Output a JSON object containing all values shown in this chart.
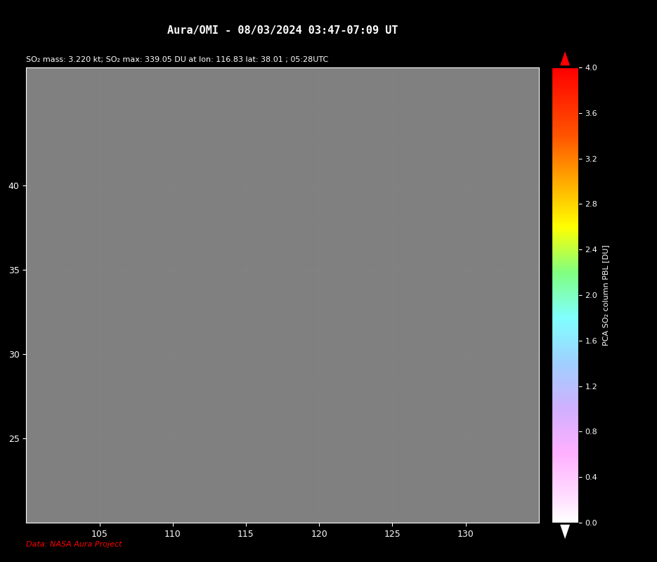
{
  "title": "Aura/OMI - 08/03/2024 03:47-07:09 UT",
  "subtitle": "SO₂ mass: 3.220 kt; SO₂ max: 339.05 DU at lon: 116.83 lat: 38.01 ; 05:28UTC",
  "footer": "Data: NASA Aura Project",
  "lon_min": 100,
  "lon_max": 135,
  "lat_min": 20,
  "lat_max": 47,
  "lon_ticks": [
    105,
    110,
    115,
    120,
    125,
    130
  ],
  "lat_ticks": [
    25,
    30,
    35,
    40
  ],
  "cbar_label": "PCA SO₂ column PBL [DU]",
  "cbar_min": 0.0,
  "cbar_max": 4.0,
  "cbar_ticks": [
    0.0,
    0.4,
    0.8,
    1.2,
    1.6,
    2.0,
    2.4,
    2.8,
    3.2,
    3.6,
    4.0
  ],
  "background_color": "#000000",
  "map_bg_color": "#808080",
  "land_color": "#d3d3d3",
  "ocean_color": "#808080",
  "swath_bg_color": "#e8e0f0",
  "title_color": "#ffffff",
  "subtitle_color": "#ffffff",
  "footer_color": "#ff0000",
  "grid_color": "#888888",
  "coastline_color": "#000000",
  "red_line_color": "#ff0000",
  "figsize": [
    9.35,
    8.0
  ],
  "dpi": 100
}
